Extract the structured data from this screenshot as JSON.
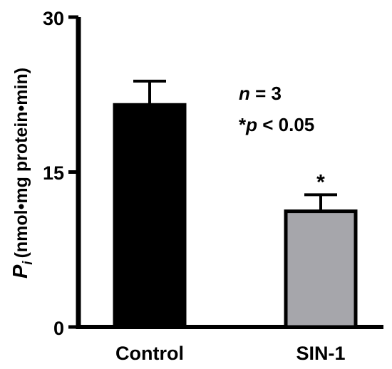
{
  "chart_data": {
    "type": "bar",
    "categories": [
      "Control",
      "SIN-1"
    ],
    "values": [
      21.5,
      11.2
    ],
    "errors": [
      2.3,
      1.6
    ],
    "bar_colors": [
      "#000000",
      "#a6a6ab"
    ],
    "significance": [
      "",
      "*"
    ],
    "ylabel": {
      "main": "P",
      "subscript": "i",
      "unit": "(nmol•mg protein•min)"
    },
    "ylim": [
      0,
      30
    ],
    "yticks": [
      "0",
      "15",
      "30"
    ],
    "annotations": {
      "n_label": "n",
      "n_value": " = 3",
      "p_star": "*",
      "p_label": "p",
      "p_value": " < 0.05"
    },
    "grid": false,
    "legend": "none"
  }
}
